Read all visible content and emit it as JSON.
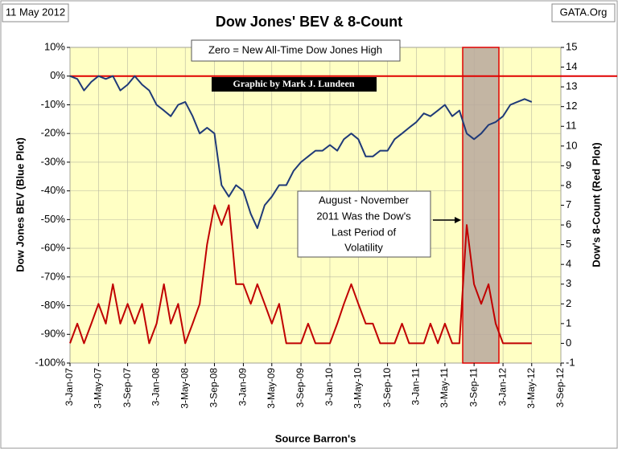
{
  "chart_data": {
    "type": "line",
    "title": "Dow Jones' BEV & 8-Count",
    "date_label": "11 May 2012",
    "source_site": "GATA.Org",
    "ylabel": "Dow Jones BEV (Blue Plot)",
    "y2label": "Dow's 8-Count (Red Plot)",
    "xlabel": "Source Barron's",
    "annotations": [
      "Zero = New All-Time Dow Jones High",
      "Graphic by Mark J. Lundeen"
    ],
    "callout": [
      "August - November",
      "2011 Was the Dow's",
      "Last Period of",
      "Volatility"
    ],
    "x": [
      "2007-01-03",
      "2007-02-03",
      "2007-03-03",
      "2007-04-03",
      "2007-05-03",
      "2007-06-03",
      "2007-07-03",
      "2007-08-03",
      "2007-09-03",
      "2007-10-03",
      "2007-11-03",
      "2007-12-03",
      "2008-01-03",
      "2008-02-03",
      "2008-03-03",
      "2008-04-03",
      "2008-05-03",
      "2008-06-03",
      "2008-07-03",
      "2008-08-03",
      "2008-09-03",
      "2008-10-03",
      "2008-11-03",
      "2008-12-03",
      "2009-01-03",
      "2009-02-03",
      "2009-03-03",
      "2009-04-03",
      "2009-05-03",
      "2009-06-03",
      "2009-07-03",
      "2009-08-03",
      "2009-09-03",
      "2009-10-03",
      "2009-11-03",
      "2009-12-03",
      "2010-01-03",
      "2010-02-03",
      "2010-03-03",
      "2010-04-03",
      "2010-05-03",
      "2010-06-03",
      "2010-07-03",
      "2010-08-03",
      "2010-09-03",
      "2010-10-03",
      "2010-11-03",
      "2010-12-03",
      "2011-01-03",
      "2011-02-03",
      "2011-03-03",
      "2011-04-03",
      "2011-05-03",
      "2011-06-03",
      "2011-07-03",
      "2011-08-03",
      "2011-09-03",
      "2011-10-03",
      "2011-11-03",
      "2011-12-03",
      "2012-01-03",
      "2012-02-03",
      "2012-03-03",
      "2012-04-03",
      "2012-05-03"
    ],
    "series": [
      {
        "name": "Dow Jones BEV",
        "color": "#1f3a78",
        "axis": "y",
        "values": [
          0,
          -1,
          -5,
          -2,
          0,
          -1,
          0,
          -5,
          -3,
          0,
          -3,
          -5,
          -10,
          -12,
          -14,
          -10,
          -9,
          -14,
          -20,
          -18,
          -20,
          -38,
          -42,
          -38,
          -40,
          -48,
          -53,
          -45,
          -42,
          -38,
          -38,
          -33,
          -30,
          -28,
          -26,
          -26,
          -24,
          -26,
          -22,
          -20,
          -22,
          -28,
          -28,
          -26,
          -26,
          -22,
          -20,
          -18,
          -16,
          -13,
          -14,
          -12,
          -10,
          -14,
          -12,
          -20,
          -22,
          -20,
          -17,
          -16,
          -14,
          -10,
          -9,
          -8,
          -9
        ]
      },
      {
        "name": "Dow's 8-Count",
        "color": "#c00000",
        "axis": "y2",
        "values": [
          0,
          1,
          0,
          1,
          2,
          1,
          3,
          1,
          2,
          1,
          2,
          0,
          1,
          3,
          1,
          2,
          0,
          1,
          2,
          5,
          7,
          6,
          7,
          3,
          3,
          2,
          3,
          2,
          1,
          2,
          0,
          0,
          0,
          1,
          0,
          0,
          0,
          1,
          2,
          3,
          2,
          1,
          1,
          0,
          0,
          0,
          1,
          0,
          0,
          0,
          1,
          0,
          1,
          0,
          0,
          6,
          3,
          2,
          3,
          1,
          0,
          0,
          0,
          0,
          0
        ]
      }
    ],
    "xlim": [
      "2007-01-03",
      "2012-09-03"
    ],
    "xticks": [
      {
        "value": "2007-01-03",
        "label": "3-Jan-07"
      },
      {
        "value": "2007-05-03",
        "label": "3-May-07"
      },
      {
        "value": "2007-09-03",
        "label": "3-Sep-07"
      },
      {
        "value": "2008-01-03",
        "label": "3-Jan-08"
      },
      {
        "value": "2008-05-03",
        "label": "3-May-08"
      },
      {
        "value": "2008-09-03",
        "label": "3-Sep-08"
      },
      {
        "value": "2009-01-03",
        "label": "3-Jan-09"
      },
      {
        "value": "2009-05-03",
        "label": "3-May-09"
      },
      {
        "value": "2009-09-03",
        "label": "3-Sep-09"
      },
      {
        "value": "2010-01-03",
        "label": "3-Jan-10"
      },
      {
        "value": "2010-05-03",
        "label": "3-May-10"
      },
      {
        "value": "2010-09-03",
        "label": "3-Sep-10"
      },
      {
        "value": "2011-01-03",
        "label": "3-Jan-11"
      },
      {
        "value": "2011-05-03",
        "label": "3-May-11"
      },
      {
        "value": "2011-09-03",
        "label": "3-Sep-11"
      },
      {
        "value": "2012-01-03",
        "label": "3-Jan-12"
      },
      {
        "value": "2012-05-03",
        "label": "3-May-12"
      },
      {
        "value": "2012-09-03",
        "label": "3-Sep-12"
      }
    ],
    "ylim": [
      -100,
      10
    ],
    "yticks": [
      {
        "value": -100,
        "label": "-100%"
      },
      {
        "value": -90,
        "label": "-90%"
      },
      {
        "value": -80,
        "label": "-80%"
      },
      {
        "value": -70,
        "label": "-70%"
      },
      {
        "value": -60,
        "label": "-60%"
      },
      {
        "value": -50,
        "label": "-50%"
      },
      {
        "value": -40,
        "label": "-40%"
      },
      {
        "value": -30,
        "label": "-30%"
      },
      {
        "value": -20,
        "label": "-20%"
      },
      {
        "value": -10,
        "label": "-10%"
      },
      {
        "value": 0,
        "label": "0%"
      },
      {
        "value": 10,
        "label": "10%"
      }
    ],
    "y2lim": [
      -1,
      15
    ],
    "y2ticks": [
      -1,
      0,
      1,
      2,
      3,
      4,
      5,
      6,
      7,
      8,
      9,
      10,
      11,
      12,
      13,
      14,
      15
    ],
    "grid": true
  }
}
